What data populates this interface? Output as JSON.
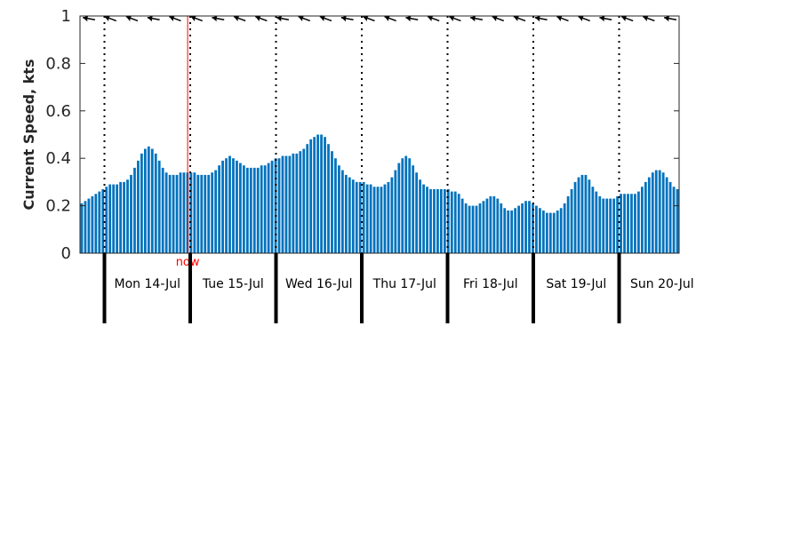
{
  "chart_data": {
    "type": "bar",
    "ylabel": "Current Speed, kts",
    "ylim": [
      0,
      1
    ],
    "yticks": [
      "0",
      "0.2",
      "0.4",
      "0.6",
      "0.8",
      "1"
    ],
    "bar_color": "#0072bd",
    "now_label": "now",
    "now_color": "#ff0000",
    "now_day_offset": 0.97,
    "start_day_offset": -0.3,
    "end_day_offset": 6.7,
    "days": [
      "Mon 14-Jul",
      "Tue 15-Jul",
      "Wed 16-Jul",
      "Thu 17-Jul",
      "Fri 18-Jul",
      "Sat 19-Jul",
      "Sun 20-Jul"
    ],
    "hours_per_value": 1,
    "values": [
      0.21,
      0.22,
      0.23,
      0.24,
      0.25,
      0.26,
      0.27,
      0.28,
      0.29,
      0.29,
      0.29,
      0.3,
      0.3,
      0.31,
      0.33,
      0.36,
      0.39,
      0.42,
      0.44,
      0.45,
      0.44,
      0.42,
      0.39,
      0.36,
      0.34,
      0.33,
      0.33,
      0.33,
      0.34,
      0.34,
      0.34,
      0.34,
      0.34,
      0.33,
      0.33,
      0.33,
      0.33,
      0.34,
      0.35,
      0.37,
      0.39,
      0.4,
      0.41,
      0.4,
      0.39,
      0.38,
      0.37,
      0.36,
      0.36,
      0.36,
      0.36,
      0.37,
      0.37,
      0.38,
      0.39,
      0.4,
      0.4,
      0.41,
      0.41,
      0.41,
      0.42,
      0.42,
      0.43,
      0.44,
      0.46,
      0.48,
      0.49,
      0.5,
      0.5,
      0.49,
      0.46,
      0.43,
      0.4,
      0.37,
      0.35,
      0.33,
      0.32,
      0.31,
      0.3,
      0.3,
      0.3,
      0.29,
      0.29,
      0.28,
      0.28,
      0.28,
      0.29,
      0.3,
      0.32,
      0.35,
      0.38,
      0.4,
      0.41,
      0.4,
      0.37,
      0.34,
      0.31,
      0.29,
      0.28,
      0.27,
      0.27,
      0.27,
      0.27,
      0.27,
      0.27,
      0.26,
      0.26,
      0.25,
      0.23,
      0.21,
      0.2,
      0.2,
      0.2,
      0.21,
      0.22,
      0.23,
      0.24,
      0.24,
      0.23,
      0.21,
      0.19,
      0.18,
      0.18,
      0.19,
      0.2,
      0.21,
      0.22,
      0.22,
      0.21,
      0.2,
      0.19,
      0.18,
      0.17,
      0.17,
      0.17,
      0.18,
      0.19,
      0.21,
      0.24,
      0.27,
      0.3,
      0.32,
      0.33,
      0.33,
      0.31,
      0.28,
      0.26,
      0.24,
      0.23,
      0.23,
      0.23,
      0.23,
      0.24,
      0.25,
      0.25,
      0.25,
      0.25,
      0.25,
      0.26,
      0.28,
      0.3,
      0.32,
      0.34,
      0.35,
      0.35,
      0.34,
      0.32,
      0.3,
      0.28,
      0.27
    ],
    "arrow_count": 28,
    "arrow_color": "#000000"
  }
}
